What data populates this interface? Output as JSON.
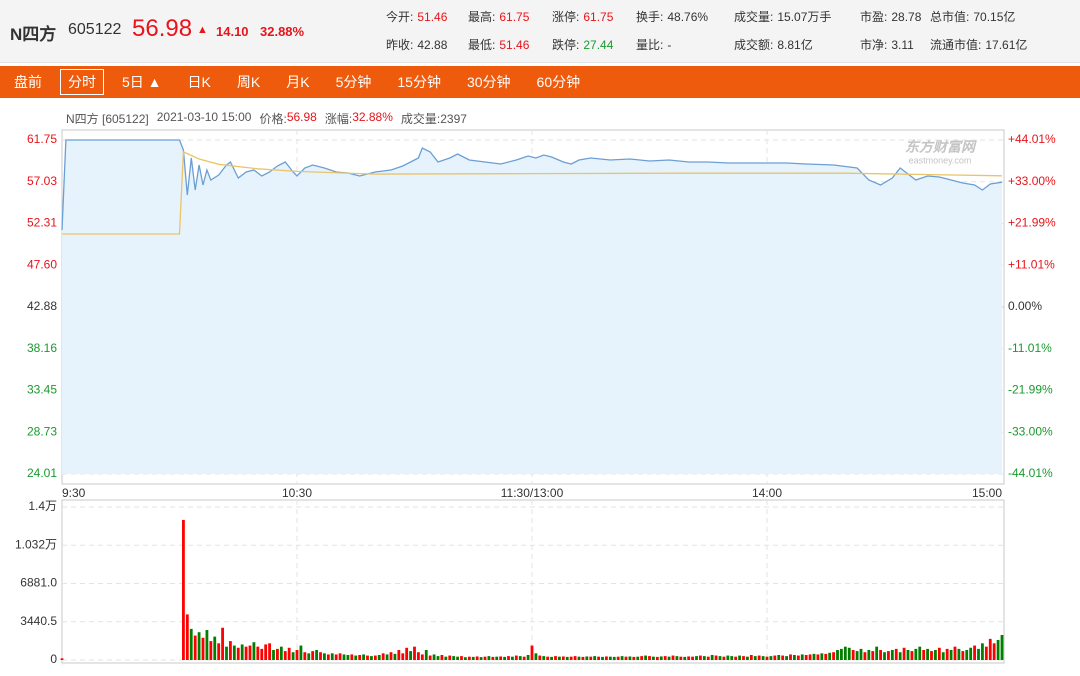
{
  "header": {
    "name": "N四方",
    "code": "605122",
    "price": "56.98",
    "arrow": "▲",
    "change": "14.10",
    "change_pct": "32.88%"
  },
  "stats": [
    [
      {
        "label": "今开:",
        "value": "51.46",
        "color": "#e8141b"
      },
      {
        "label": "最高:",
        "value": "61.75",
        "color": "#e8141b"
      },
      {
        "label": "涨停:",
        "value": "61.75",
        "color": "#e8141b"
      },
      {
        "label": "换手:",
        "value": "48.76%",
        "color": "#333333"
      },
      {
        "label": "成交量:",
        "value": "15.07万手",
        "color": "#333333"
      },
      {
        "label": "市盈:",
        "value": "28.78",
        "color": "#333333"
      },
      {
        "label": "总市值:",
        "value": "70.15亿",
        "color": "#333333"
      }
    ],
    [
      {
        "label": "昨收:",
        "value": "42.88",
        "color": "#333333"
      },
      {
        "label": "最低:",
        "value": "51.46",
        "color": "#e8141b"
      },
      {
        "label": "跌停:",
        "value": "27.44",
        "color": "#1a9a2f"
      },
      {
        "label": "量比:",
        "value": "-",
        "color": "#333333"
      },
      {
        "label": "成交额:",
        "value": "8.81亿",
        "color": "#333333"
      },
      {
        "label": "市净:",
        "value": "3.11",
        "color": "#333333"
      },
      {
        "label": "流通市值:",
        "value": "17.61亿",
        "color": "#333333"
      }
    ]
  ],
  "tabs": [
    "盘前",
    "分时",
    "5日 ▲",
    "日K",
    "周K",
    "月K",
    "5分钟",
    "15分钟",
    "30分钟",
    "60分钟"
  ],
  "active_tab": 1,
  "info": [
    {
      "text": "N四方 [605122]",
      "color": "#555555"
    },
    {
      "text": "2021-03-10 15:00",
      "color": "#555555"
    },
    {
      "text": "价格:",
      "color": "#555555"
    },
    {
      "text": "56.98",
      "color": "#e8141b"
    },
    {
      "text": "涨幅:",
      "color": "#555555"
    },
    {
      "text": "32.88%",
      "color": "#e8141b"
    },
    {
      "text": "成交量:2397",
      "color": "#555555"
    }
  ],
  "watermark": "东方财富网",
  "watermark_sub": "eastmoney.com",
  "chart_data": [
    {
      "type": "line",
      "up_color": "#e8141b",
      "down_color": "#1a9a2f",
      "grid": true,
      "xlim": [
        0,
        240
      ],
      "xticks": [
        {
          "value": 0,
          "label": "9:30"
        },
        {
          "value": 60,
          "label": "10:30"
        },
        {
          "value": 120,
          "label": "11:30/13:00"
        },
        {
          "value": 180,
          "label": "14:00"
        },
        {
          "value": 240,
          "label": "15:00"
        }
      ],
      "ylim": [
        24.01,
        61.75
      ],
      "yticks": [
        {
          "value": 61.75,
          "label": "61.75"
        },
        {
          "value": 57.03,
          "label": "57.03"
        },
        {
          "value": 52.31,
          "label": "52.31"
        },
        {
          "value": 47.6,
          "label": "47.60"
        },
        {
          "value": 42.88,
          "label": "42.88"
        },
        {
          "value": 38.16,
          "label": "38.16"
        },
        {
          "value": 33.45,
          "label": "33.45"
        },
        {
          "value": 28.73,
          "label": "28.73"
        },
        {
          "value": 24.01,
          "label": "24.01"
        }
      ],
      "y2lim": [
        -44.01,
        44.01
      ],
      "y2ticks": [
        {
          "value": 44.01,
          "label": "+44.01%"
        },
        {
          "value": 33.0,
          "label": "+33.00%"
        },
        {
          "value": 21.99,
          "label": "+21.99%"
        },
        {
          "value": 11.01,
          "label": "+11.01%"
        },
        {
          "value": 0,
          "label": "0.00%"
        },
        {
          "value": -11.01,
          "label": "-11.01%"
        },
        {
          "value": -21.99,
          "label": "-21.99%"
        },
        {
          "value": -33.0,
          "label": "-33.00%"
        },
        {
          "value": -44.01,
          "label": "-44.01%"
        }
      ],
      "series": [
        {
          "color": "#6b9fd4",
          "fill": "#e6f3fc",
          "x": [
            0,
            1,
            30,
            31,
            32,
            33,
            34,
            35,
            36,
            37,
            38,
            40,
            42,
            43,
            45,
            47,
            49,
            51,
            53,
            55,
            57,
            59,
            60,
            62,
            64,
            67,
            70,
            73,
            76,
            80,
            84,
            87,
            89,
            91,
            92,
            94,
            96,
            99,
            101,
            104,
            108,
            112,
            116,
            119,
            121,
            123,
            125,
            128,
            130,
            132,
            135,
            140,
            145,
            150,
            155,
            160,
            165,
            170,
            175,
            180,
            185,
            190,
            197,
            203,
            206,
            209,
            212,
            214,
            216,
            218,
            221,
            224,
            227,
            230,
            233,
            235,
            237,
            240
          ],
          "values": [
            51.58,
            61.75,
            61.75,
            60.62,
            55.54,
            59.72,
            56.1,
            58.93,
            56.67,
            58.36,
            57.23,
            57.8,
            58.93,
            59.26,
            57.46,
            58.13,
            58.36,
            57.68,
            58.13,
            58.81,
            59.26,
            58.13,
            57.68,
            58.59,
            58.93,
            58.59,
            58.13,
            58.02,
            57.68,
            58.13,
            58.36,
            58.81,
            59.26,
            59.72,
            60.85,
            60.39,
            59.26,
            59.72,
            60.17,
            59.49,
            59.26,
            59.04,
            59.49,
            59.94,
            59.72,
            60.06,
            59.83,
            59.26,
            59.04,
            59.49,
            59.72,
            59.49,
            59.6,
            59.38,
            59.49,
            59.26,
            59.26,
            59.15,
            59.15,
            59.15,
            59.15,
            59.04,
            58.93,
            58.59,
            57.23,
            56.67,
            57.46,
            58.59,
            57.91,
            57.23,
            57.68,
            57.57,
            57.23,
            56.89,
            56.67,
            56.1,
            56.78,
            56.98
          ]
        },
        {
          "color": "#e9c46a",
          "x": [
            0,
            30,
            31,
            35,
            40,
            50,
            60,
            80,
            120,
            160,
            200,
            220,
            240
          ],
          "values": [
            51.13,
            51.13,
            60.4,
            59.6,
            59.0,
            58.5,
            58.2,
            57.9,
            57.95,
            58.0,
            58.0,
            57.85,
            57.7
          ]
        }
      ]
    },
    {
      "type": "bar",
      "xlim": [
        0,
        240
      ],
      "ylim": [
        0,
        13762
      ],
      "yticks": [
        {
          "value": 13762,
          "label": "1.4万"
        },
        {
          "value": 10321.5,
          "label": "1.032万"
        },
        {
          "value": 6881,
          "label": "6881.0"
        },
        {
          "value": 3440.5,
          "label": "3440.5"
        },
        0
      ],
      "values": [
        150,
        0,
        0,
        0,
        0,
        0,
        0,
        0,
        0,
        0,
        0,
        0,
        0,
        0,
        0,
        0,
        0,
        0,
        0,
        0,
        0,
        0,
        0,
        0,
        0,
        0,
        0,
        0,
        0,
        0,
        0,
        12600,
        4100,
        2800,
        2200,
        2500,
        2000,
        2700,
        1700,
        2100,
        1500,
        2900,
        1200,
        1700,
        1300,
        1100,
        1400,
        1200,
        1300,
        1600,
        1200,
        1000,
        1400,
        1500,
        900,
        1000,
        1200,
        800,
        1100,
        700,
        900,
        1300,
        700,
        600,
        800,
        900,
        700,
        600,
        500,
        600,
        500,
        600,
        500,
        450,
        500,
        400,
        450,
        500,
        400,
        350,
        400,
        450,
        600,
        500,
        700,
        550,
        900,
        600,
        1100,
        800,
        1200,
        700,
        500,
        900,
        400,
        500,
        350,
        450,
        300,
        400,
        350,
        300,
        350,
        250,
        300,
        280,
        320,
        260,
        300,
        350,
        280,
        300,
        320,
        280,
        350,
        300,
        400,
        350,
        300,
        450,
        1300,
        600,
        400,
        350,
        300,
        280,
        350,
        300,
        320,
        280,
        300,
        350,
        300,
        280,
        320,
        300,
        350,
        300,
        280,
        320,
        300,
        280,
        300,
        350,
        300,
        320,
        280,
        300,
        350,
        400,
        350,
        300,
        280,
        320,
        350,
        300,
        400,
        350,
        300,
        280,
        320,
        300,
        350,
        400,
        350,
        300,
        450,
        400,
        350,
        300,
        400,
        350,
        300,
        400,
        350,
        300,
        450,
        350,
        400,
        350,
        300,
        350,
        400,
        450,
        400,
        350,
        500,
        450,
        400,
        500,
        450,
        500,
        550,
        500,
        600,
        550,
        650,
        700,
        900,
        1000,
        1200,
        1100,
        900,
        800,
        1000,
        700,
        900,
        800,
        1200,
        900,
        700,
        800,
        900,
        1000,
        700,
        1100,
        900,
        800,
        1000,
        1200,
        900,
        1000,
        800,
        900,
        1100,
        700,
        1000,
        900,
        1200,
        1000,
        800,
        900,
        1100,
        1300,
        1000,
        1500,
        1200,
        1900,
        1500,
        1800,
        2250
      ],
      "bar_colors": [
        "red",
        "red",
        "red",
        "red",
        "red",
        "red",
        "red",
        "red",
        "red",
        "red",
        "red",
        "red",
        "red",
        "red",
        "red",
        "red",
        "red",
        "red",
        "red",
        "red",
        "red",
        "red",
        "red",
        "red",
        "red",
        "red",
        "red",
        "red",
        "red",
        "red",
        "red",
        "red",
        "red",
        "green",
        "red",
        "green",
        "red",
        "green",
        "red",
        "green",
        "red",
        "red",
        "green",
        "red",
        "green",
        "red",
        "green",
        "red",
        "red",
        "green",
        "red",
        "red",
        "red",
        "red",
        "green",
        "red",
        "green",
        "red",
        "red",
        "green",
        "red",
        "green",
        "red",
        "green",
        "red",
        "green",
        "red",
        "green",
        "red",
        "green",
        "red",
        "red",
        "green",
        "green",
        "red",
        "green",
        "red",
        "green",
        "red",
        "green",
        "red",
        "green",
        "red",
        "green",
        "red",
        "green",
        "red",
        "red",
        "red",
        "green",
        "red",
        "red",
        "red",
        "green",
        "red",
        "green",
        "green",
        "red",
        "green",
        "red",
        "green",
        "green",
        "red",
        "green",
        "red",
        "green",
        "red",
        "green",
        "red",
        "green",
        "red",
        "green",
        "red",
        "green",
        "red",
        "green",
        "red",
        "green",
        "red",
        "green",
        "red",
        "green",
        "red",
        "green",
        "red",
        "green",
        "red",
        "green",
        "red",
        "green",
        "red",
        "red",
        "green",
        "red",
        "green",
        "red",
        "green",
        "red",
        "green",
        "red",
        "green",
        "green",
        "red",
        "green",
        "red",
        "green",
        "red",
        "green",
        "red",
        "green",
        "red",
        "green",
        "red",
        "green",
        "red",
        "green",
        "red",
        "green",
        "red",
        "green",
        "red",
        "red",
        "green",
        "red",
        "green",
        "red",
        "green",
        "red",
        "green",
        "red",
        "green",
        "green",
        "red",
        "green",
        "red",
        "green",
        "red",
        "green",
        "red",
        "green",
        "red",
        "green",
        "red",
        "green",
        "red",
        "green",
        "red",
        "green",
        "red",
        "green",
        "red",
        "red",
        "green",
        "red",
        "green",
        "red",
        "green",
        "red",
        "green",
        "green",
        "green",
        "green",
        "red",
        "green",
        "green",
        "red",
        "green",
        "red",
        "green",
        "red",
        "green",
        "red",
        "green",
        "red",
        "green",
        "red",
        "green",
        "red",
        "green",
        "green",
        "red",
        "green",
        "red",
        "green",
        "red",
        "green",
        "red",
        "green",
        "red",
        "green",
        "red",
        "green",
        "green",
        "red",
        "green",
        "green",
        "red",
        "red",
        "red",
        "green",
        "green"
      ]
    }
  ]
}
